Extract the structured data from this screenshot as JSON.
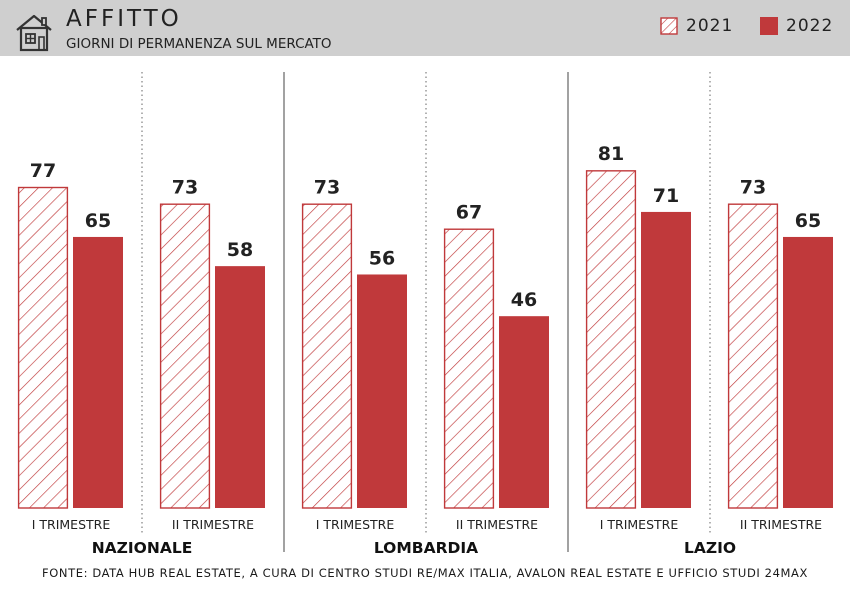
{
  "header": {
    "title": "AFFITTO",
    "subtitle": "GIORNI DI PERMANENZA SUL MERCATO",
    "icon": "house-icon"
  },
  "legend": [
    {
      "label": "2021",
      "style": "hatched",
      "color": "#c0393b"
    },
    {
      "label": "2022",
      "style": "solid",
      "color": "#c0393b"
    }
  ],
  "colors": {
    "accent": "#c0393b",
    "header_bg": "#cfcfcf"
  },
  "chart_data": {
    "type": "bar",
    "series": [
      {
        "name": "2021",
        "values": [
          77,
          73,
          73,
          67,
          81,
          73
        ]
      },
      {
        "name": "2022",
        "values": [
          65,
          58,
          56,
          46,
          71,
          65
        ]
      }
    ],
    "groups": [
      {
        "region": "NAZIONALE",
        "quarters": [
          "I TRIMESTRE",
          "II TRIMESTRE"
        ]
      },
      {
        "region": "LOMBARDIA",
        "quarters": [
          "I TRIMESTRE",
          "II TRIMESTRE"
        ]
      },
      {
        "region": "LAZIO",
        "quarters": [
          "I TRIMESTRE",
          "II TRIMESTRE"
        ]
      }
    ],
    "title": "AFFITTO",
    "subtitle": "GIORNI DI PERMANENZA SUL MERCATO",
    "legend_position": "top-right",
    "grid": false,
    "ylim": [
      0,
      81
    ]
  },
  "footer": {
    "source": "FONTE: DATA HUB REAL ESTATE, A CURA DI CENTRO STUDI RE/MAX ITALIA, AVALON REAL ESTATE E UFFICIO STUDI 24MAX"
  }
}
